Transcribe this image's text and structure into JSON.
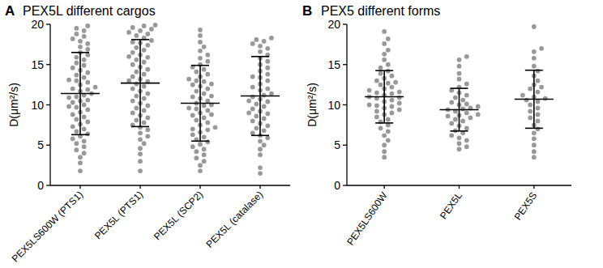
{
  "chart_data": [
    {
      "type": "scatter",
      "panel": "A",
      "title": "PEX5L  different cargos",
      "y_label": "D(μm²/s)",
      "categories": [
        "PEX5LS600W (PTS1)",
        "PEX5L (PTS1)",
        "PEX5L (SCP2)",
        "PEX5L (catalase)"
      ],
      "values": [
        [
          19.8,
          19.5,
          19.2,
          18.8,
          18.5,
          18.2,
          17.9,
          17.6,
          17.2,
          16.9,
          16.5,
          16.2,
          15.9,
          15.6,
          15.2,
          14.9,
          14.6,
          14.3,
          14.0,
          13.7,
          13.4,
          13.1,
          12.8,
          12.5,
          12.2,
          11.9,
          11.7,
          11.4,
          11.2,
          10.9,
          10.6,
          10.3,
          10.0,
          9.7,
          9.4,
          9.1,
          8.8,
          8.5,
          8.2,
          7.9,
          7.6,
          7.3,
          7.0,
          6.7,
          6.4,
          6.1,
          5.8,
          5.5,
          5.2,
          4.8,
          4.4,
          4.0,
          3.5,
          2.8,
          1.8,
          12.0,
          11.0,
          13.0,
          9.8,
          10.5
        ],
        [
          19.9,
          19.8,
          19.6,
          19.4,
          19.2,
          19.0,
          18.8,
          18.6,
          18.3,
          18.0,
          17.7,
          17.4,
          17.1,
          16.8,
          16.5,
          16.2,
          15.9,
          15.6,
          15.3,
          15.0,
          14.7,
          14.4,
          14.1,
          13.8,
          13.5,
          13.2,
          12.9,
          12.6,
          12.3,
          12.0,
          11.7,
          11.4,
          11.1,
          10.8,
          10.5,
          10.2,
          9.9,
          9.6,
          9.3,
          9.0,
          8.7,
          8.4,
          8.1,
          7.8,
          7.5,
          7.2,
          6.9,
          6.5,
          6.1,
          5.7,
          5.2,
          4.6,
          3.9,
          3.0,
          1.8,
          17.8,
          16.0,
          13.0
        ],
        [
          19.3,
          18.6,
          17.8,
          17.2,
          16.7,
          16.2,
          15.8,
          15.4,
          15.0,
          14.7,
          14.4,
          14.1,
          13.8,
          13.5,
          13.2,
          12.9,
          12.6,
          12.3,
          12.0,
          11.7,
          11.4,
          11.1,
          10.8,
          10.5,
          10.2,
          9.9,
          9.6,
          9.3,
          9.0,
          8.7,
          8.4,
          8.1,
          7.8,
          7.5,
          7.2,
          6.9,
          6.6,
          6.3,
          6.0,
          5.7,
          5.4,
          5.1,
          4.8,
          4.5,
          4.2,
          3.8,
          3.4,
          3.0,
          2.5,
          1.8,
          11.0,
          10.0,
          9.5,
          8.8,
          12.5,
          7.0,
          13.0
        ],
        [
          18.3,
          18.1,
          17.9,
          17.6,
          17.3,
          17.0,
          16.6,
          16.2,
          15.8,
          15.4,
          15.0,
          14.6,
          14.2,
          13.8,
          13.4,
          13.0,
          12.6,
          12.2,
          11.8,
          11.4,
          11.0,
          10.7,
          10.4,
          10.1,
          9.8,
          9.5,
          9.2,
          8.9,
          8.6,
          8.3,
          8.0,
          7.7,
          7.4,
          7.1,
          6.8,
          6.5,
          6.2,
          5.9,
          5.5,
          5.0,
          4.5,
          3.8,
          2.2,
          1.5,
          12.0,
          11.2,
          10.5,
          13.5,
          9.0
        ]
      ],
      "mean": [
        11.4,
        12.7,
        10.2,
        11.1
      ],
      "sd": [
        5.1,
        5.4,
        4.7,
        4.9
      ],
      "color": "#999999",
      "ylim": [
        0,
        20
      ],
      "yticks": [
        0,
        5,
        10,
        15,
        20
      ],
      "grid": false
    },
    {
      "type": "scatter",
      "panel": "B",
      "title": "PEX5 different forms",
      "y_label": "D(μm²/s)",
      "categories": [
        "PEX5LS600W",
        "PEX5L",
        "PEX5S"
      ],
      "values": [
        [
          19.1,
          18.2,
          17.6,
          16.8,
          16.3,
          15.6,
          15.0,
          14.6,
          14.2,
          13.9,
          13.6,
          13.3,
          13.0,
          12.7,
          12.5,
          12.2,
          12.0,
          11.8,
          11.6,
          11.4,
          11.2,
          11.0,
          10.8,
          10.6,
          10.4,
          10.2,
          10.0,
          9.8,
          9.6,
          9.4,
          9.2,
          9.0,
          8.8,
          8.5,
          8.2,
          7.9,
          7.5,
          7.1,
          6.7,
          6.2,
          5.6,
          5.0,
          4.2,
          3.5,
          11.5,
          10.9,
          12.8,
          9.9
        ],
        [
          16.0,
          15.6,
          14.8,
          13.9,
          13.2,
          12.6,
          12.2,
          11.8,
          11.5,
          11.2,
          10.9,
          10.6,
          10.3,
          10.0,
          9.8,
          9.6,
          9.4,
          9.2,
          9.0,
          8.8,
          8.6,
          8.4,
          8.2,
          8.0,
          7.7,
          7.4,
          7.1,
          6.8,
          6.5,
          6.2,
          5.9,
          5.6,
          5.2,
          4.8,
          4.5,
          9.5,
          10.1,
          8.7
        ],
        [
          19.7,
          17.0,
          16.6,
          15.8,
          14.8,
          14.2,
          13.6,
          13.0,
          12.5,
          12.0,
          11.6,
          11.2,
          10.8,
          10.4,
          10.0,
          9.6,
          9.2,
          8.8,
          8.4,
          8.0,
          7.5,
          7.0,
          6.5,
          5.8,
          5.0,
          4.2,
          3.5,
          11.0,
          10.6,
          12.2
        ]
      ],
      "mean": [
        11.0,
        9.4,
        10.7
      ],
      "sd": [
        3.25,
        2.65,
        3.6
      ],
      "color": "#999999",
      "ylim": [
        0,
        20
      ],
      "yticks": [
        0,
        5,
        10,
        15,
        20
      ],
      "grid": false
    }
  ]
}
